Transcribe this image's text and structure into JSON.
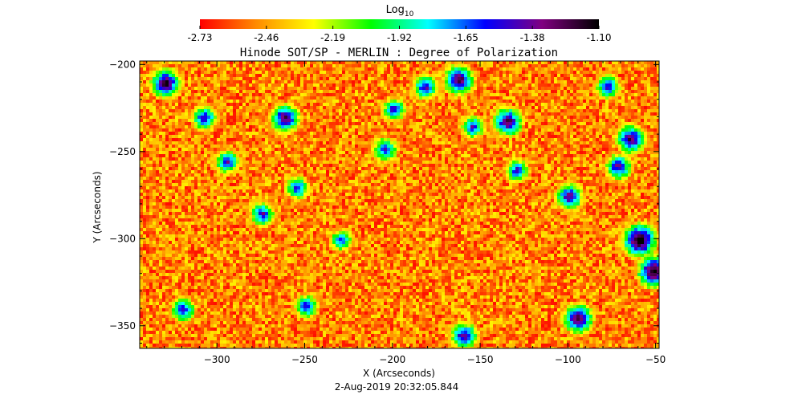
{
  "colorbar": {
    "label_main": "Log",
    "label_sub": "10",
    "ticks": [
      "-2.73",
      "-2.46",
      "-2.19",
      "-1.92",
      "-1.65",
      "-1.38",
      "-1.10"
    ]
  },
  "chart_data": {
    "type": "heatmap",
    "title": "Hinode SOT/SP - MERLIN : Degree of Polarization",
    "xlabel": "X (Arcseconds)",
    "ylabel": "Y (Arcseconds)",
    "xlim": [
      -344,
      -48
    ],
    "ylim": [
      -363,
      -198
    ],
    "x_ticks": [
      -300,
      -250,
      -200,
      -150,
      -100,
      -50
    ],
    "y_ticks": [
      -200,
      -250,
      -300,
      -350
    ],
    "x_tick_labels": [
      "−300",
      "−250",
      "−200",
      "−150",
      "−100",
      "−50"
    ],
    "y_tick_labels": [
      "−200",
      "−250",
      "−300",
      "−350"
    ],
    "colorbar_range": [
      -2.73,
      -1.1
    ],
    "colorbar_unit": "Log10",
    "colormap": [
      "#ff0000",
      "#ff8c00",
      "#ffff00",
      "#00ff00",
      "#00ffff",
      "#0000ff",
      "#800080",
      "#000000"
    ],
    "background_level": -2.5,
    "features": [
      {
        "x": -330,
        "y": -210,
        "level": -1.55
      },
      {
        "x": -308,
        "y": -230,
        "level": -1.8
      },
      {
        "x": -295,
        "y": -255,
        "level": -1.85
      },
      {
        "x": -275,
        "y": -285,
        "level": -1.85
      },
      {
        "x": -262,
        "y": -230,
        "level": -1.6
      },
      {
        "x": -255,
        "y": -270,
        "level": -1.9
      },
      {
        "x": -230,
        "y": -300,
        "level": -1.95
      },
      {
        "x": -205,
        "y": -248,
        "level": -1.85
      },
      {
        "x": -200,
        "y": -225,
        "level": -1.9
      },
      {
        "x": -182,
        "y": -212,
        "level": -1.8
      },
      {
        "x": -163,
        "y": -208,
        "level": -1.55
      },
      {
        "x": -155,
        "y": -235,
        "level": -1.9
      },
      {
        "x": -135,
        "y": -232,
        "level": -1.6
      },
      {
        "x": -130,
        "y": -260,
        "level": -1.9
      },
      {
        "x": -100,
        "y": -275,
        "level": -1.7
      },
      {
        "x": -95,
        "y": -345,
        "level": -1.55
      },
      {
        "x": -78,
        "y": -212,
        "level": -1.85
      },
      {
        "x": -72,
        "y": -258,
        "level": -1.75
      },
      {
        "x": -65,
        "y": -242,
        "level": -1.6
      },
      {
        "x": -60,
        "y": -300,
        "level": -1.35
      },
      {
        "x": -52,
        "y": -318,
        "level": -1.4
      },
      {
        "x": -160,
        "y": -355,
        "level": -1.7
      },
      {
        "x": -320,
        "y": -340,
        "level": -1.85
      },
      {
        "x": -250,
        "y": -338,
        "level": -1.9
      }
    ]
  },
  "footer": {
    "timestamp": "2-Aug-2019 20:32:05.844"
  }
}
